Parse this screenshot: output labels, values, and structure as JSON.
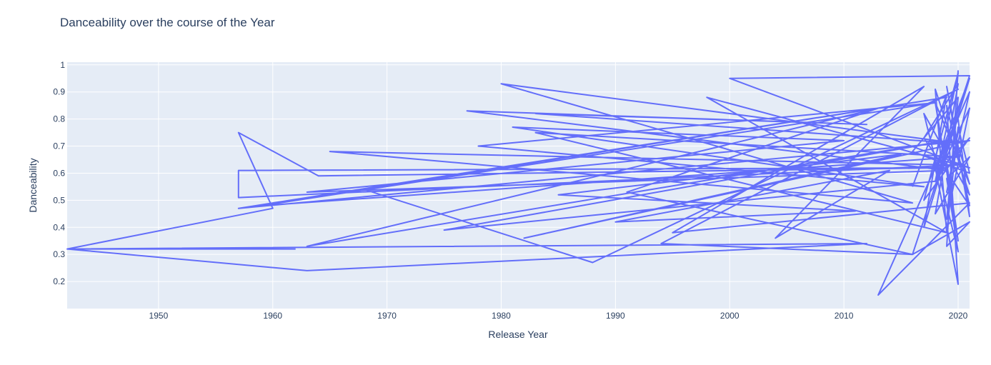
{
  "chart_data": {
    "type": "line",
    "title": "Danceability over the course of the Year",
    "xlabel": "Release Year",
    "ylabel": "Danceability",
    "xlim": [
      1942,
      2021
    ],
    "ylim": [
      0.1,
      1.01
    ],
    "x_ticks": [
      1950,
      1960,
      1970,
      1980,
      1990,
      2000,
      2010,
      2020
    ],
    "y_ticks": [
      0.2,
      0.3,
      0.4,
      0.5,
      0.6,
      0.7,
      0.8,
      0.9,
      1
    ],
    "grid": true,
    "line_color": "#636efa",
    "plot_background": "#e5ecf6",
    "series": [
      {
        "x": [
          1962,
          1942,
          1963,
          2012,
          1942,
          1960,
          1957,
          1964,
          2019,
          1957,
          1957,
          2020,
          1965,
          2016,
          1980,
          2020,
          1983,
          2012,
          1977,
          2019,
          1963,
          2010,
          1981,
          2017,
          1978,
          2018,
          1959,
          2020,
          1983,
          2019,
          1998,
          2021,
          2000,
          2021,
          2018,
          1975,
          2019,
          1963,
          2013,
          1991,
          2016,
          1994,
          2020,
          1988,
          1968,
          2019,
          1957,
          2021,
          1982,
          2015,
          1985,
          2011,
          1990,
          2014,
          2004,
          2017,
          1995,
          2021,
          2013,
          2020,
          2016,
          2021,
          2019,
          2020
        ],
        "y": [
          0.32,
          0.32,
          0.24,
          0.34,
          0.32,
          0.47,
          0.75,
          0.59,
          0.62,
          0.61,
          0.51,
          0.63,
          0.68,
          0.49,
          0.93,
          0.71,
          0.82,
          0.78,
          0.83,
          0.61,
          0.53,
          0.72,
          0.77,
          0.55,
          0.7,
          0.86,
          0.48,
          0.66,
          0.75,
          0.38,
          0.88,
          0.62,
          0.95,
          0.96,
          0.57,
          0.39,
          0.72,
          0.33,
          0.84,
          0.53,
          0.3,
          0.34,
          0.91,
          0.27,
          0.54,
          0.88,
          0.47,
          0.72,
          0.36,
          0.67,
          0.52,
          0.46,
          0.42,
          0.61,
          0.36,
          0.92,
          0.38,
          0.49,
          0.15,
          0.81,
          0.3,
          0.42,
          0.33,
          0.98
        ]
      },
      {
        "x": [
          2016,
          2019,
          2017,
          2021,
          2018,
          2020,
          2019,
          2021,
          2017,
          2020,
          2018,
          2021,
          2019,
          2020,
          2017,
          2021,
          2018,
          2019,
          2020,
          2021,
          2016,
          2020,
          2019,
          2021,
          2018,
          2020,
          2017,
          2021,
          2019,
          2020,
          2018,
          2021,
          2020,
          2019,
          2021,
          2020,
          2018,
          2021,
          2019,
          2020
        ],
        "y": [
          0.55,
          0.89,
          0.4,
          0.95,
          0.62,
          0.19,
          0.85,
          0.48,
          0.73,
          0.93,
          0.45,
          0.66,
          0.58,
          0.31,
          0.82,
          0.52,
          0.91,
          0.38,
          0.77,
          0.6,
          0.68,
          0.88,
          0.43,
          0.84,
          0.57,
          0.97,
          0.5,
          0.73,
          0.64,
          0.35,
          0.86,
          0.56,
          0.7,
          0.92,
          0.44,
          0.8,
          0.61,
          0.9,
          0.53,
          0.75
        ]
      }
    ]
  }
}
